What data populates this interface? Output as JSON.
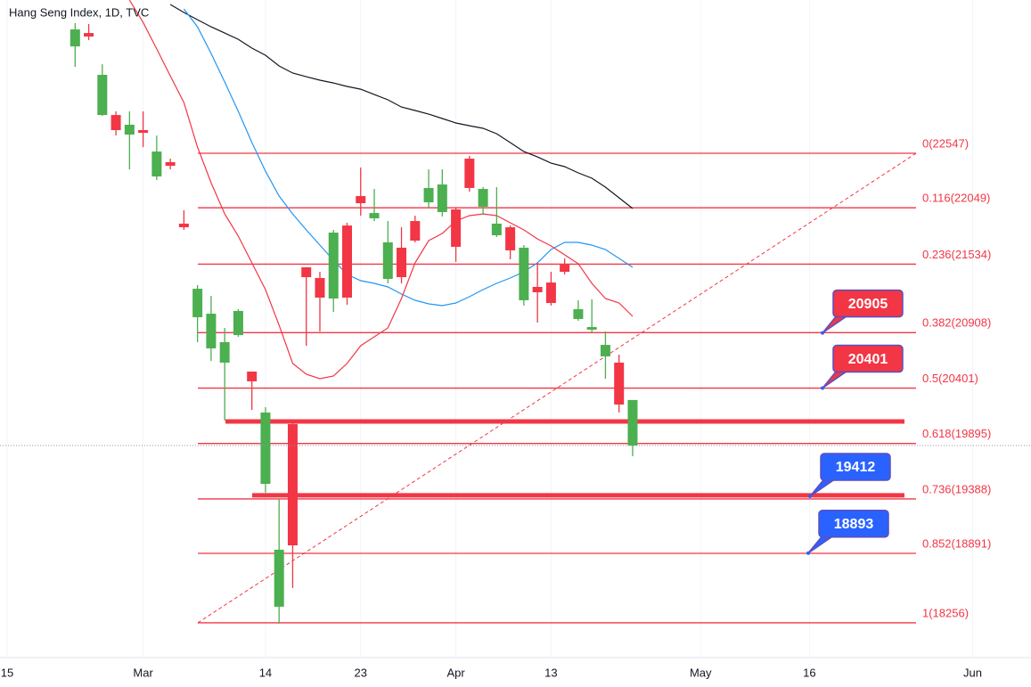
{
  "chart_data": {
    "type": "candlestick",
    "title": "Hang Seng Index, 1D, TVC",
    "categories": [
      "15",
      null,
      null,
      null,
      null,
      null,
      null,
      null,
      null,
      null,
      "Mar",
      null,
      null,
      null,
      null,
      null,
      null,
      null,
      null,
      "14",
      null,
      null,
      null,
      null,
      null,
      null,
      "23",
      null,
      null,
      null,
      null,
      null,
      null,
      "Apr",
      null,
      null,
      null,
      null,
      null,
      null,
      "13",
      null,
      null,
      null,
      null,
      null,
      null,
      null,
      null,
      null,
      null,
      "May",
      null,
      null,
      null,
      null,
      null,
      null,
      null,
      "16",
      null,
      null,
      null,
      null,
      null,
      null,
      null,
      null,
      null,
      null,
      null,
      "Jun",
      null,
      null,
      null,
      null
    ],
    "open": [
      null,
      null,
      null,
      null,
      null,
      23679,
      23614,
      23264,
      22759,
      22808,
      22734,
      22563,
      22433,
      21871,
      21309,
      21081,
      20821,
      21106,
      20463,
      20178,
      18924,
      18964,
      21415,
      21228,
      21822,
      21228,
      22091,
      22001,
      21733,
      21415,
      21749,
      22230,
      22262,
      21692,
      22230,
      22221,
      21904,
      21660,
      21684,
      21277,
      21179,
      21464,
      21122,
      20959,
      20796,
      20251,
      20292,
      null,
      null,
      null,
      null,
      null,
      null,
      null,
      null,
      null,
      null,
      null,
      null,
      null,
      null,
      null,
      null,
      null,
      null,
      null,
      null,
      null,
      null,
      null,
      null,
      null,
      null,
      null,
      null,
      null
    ],
    "high": [
      null,
      null,
      null,
      null,
      null,
      23736,
      23728,
      23361,
      22930,
      22930,
      22930,
      22710,
      22498,
      22026,
      21342,
      21244,
      20951,
      21122,
      20552,
      20227,
      19388,
      20112,
      21505,
      21464,
      21847,
      21912,
      22417,
      22221,
      21928,
      21871,
      21977,
      22400,
      22400,
      22050,
      22523,
      22238,
      22238,
      21887,
      21708,
      21546,
      21464,
      21586,
      21204,
      21212,
      20919,
      20707,
      20292,
      null,
      null,
      null,
      null,
      null,
      null,
      null,
      null,
      null,
      null,
      null,
      null,
      null,
      null,
      null,
      null,
      null,
      null,
      null,
      null,
      null,
      null,
      null,
      null,
      null,
      null,
      null,
      null,
      null
    ],
    "low": [
      null,
      null,
      null,
      null,
      null,
      23337,
      23581,
      22889,
      22710,
      22400,
      22604,
      22303,
      22400,
      21847,
      20821,
      20650,
      20104,
      20870,
      20202,
      19445,
      18248,
      18574,
      20788,
      20919,
      21098,
      21163,
      21977,
      21928,
      21358,
      21358,
      21733,
      22042,
      21969,
      21554,
      22197,
      21985,
      21782,
      21578,
      21155,
      21000,
      21155,
      21440,
      21016,
      20910,
      20487,
      20178,
      19779,
      null,
      null,
      null,
      null,
      null,
      null,
      null,
      null,
      null,
      null,
      null,
      null,
      null,
      null,
      null,
      null,
      null,
      null,
      null,
      null,
      null,
      null,
      null,
      null,
      null,
      null,
      null,
      null,
      null
    ],
    "close": [
      null,
      null,
      null,
      null,
      null,
      23524,
      23646,
      22897,
      22897,
      22718,
      22759,
      22335,
      22466,
      21904,
      21049,
      20764,
      20634,
      20886,
      20552,
      19526,
      18403,
      20072,
      21505,
      21407,
      21220,
      21887,
      22156,
      21953,
      21399,
      21684,
      21928,
      22099,
      22010,
      22034,
      22498,
      22058,
      21798,
      21871,
      21204,
      21326,
      21366,
      21529,
      21033,
      20935,
      20691,
      20634,
      19876,
      null,
      null,
      null,
      null,
      null,
      null,
      null,
      null,
      null,
      null,
      null,
      null,
      null,
      null,
      null,
      null,
      null,
      null,
      null,
      null,
      null,
      null,
      null,
      null,
      null,
      null,
      null,
      null,
      null
    ],
    "up_color": "#f23645",
    "down_color": "#4caf50",
    "lines": [
      {
        "color": "#131722",
        "values": [
          null,
          null,
          null,
          null,
          null,
          null,
          null,
          null,
          null,
          null,
          null,
          null,
          23907,
          23834,
          23768,
          23703,
          23646,
          23589,
          23508,
          23443,
          23345,
          23280,
          23247,
          23215,
          23190,
          23158,
          23133,
          23084,
          23036,
          22970,
          22938,
          22905,
          22865,
          22824,
          22799,
          22775,
          22726,
          22645,
          22563,
          22514,
          22457,
          22425,
          22368,
          22319,
          22238,
          22140,
          22042,
          null,
          null,
          null,
          null,
          null,
          null,
          null,
          null,
          null,
          null,
          null,
          null,
          null,
          null,
          null,
          null,
          null,
          null,
          null,
          null,
          null,
          null,
          null,
          null,
          null,
          null,
          null,
          null,
          null
        ]
      },
      {
        "color": "#2196f3",
        "values": [
          null,
          null,
          null,
          null,
          null,
          null,
          null,
          null,
          null,
          null,
          null,
          null,
          null,
          23866,
          23703,
          23459,
          23198,
          22930,
          22645,
          22384,
          22156,
          21993,
          21847,
          21708,
          21570,
          21440,
          21383,
          21358,
          21326,
          21261,
          21204,
          21171,
          21155,
          21179,
          21236,
          21301,
          21358,
          21407,
          21464,
          21546,
          21668,
          21733,
          21733,
          21708,
          21668,
          21586,
          21505,
          null,
          null,
          null,
          null,
          null,
          null,
          null,
          null,
          null,
          null,
          null,
          null,
          null,
          null,
          null,
          null,
          null,
          null,
          null,
          null,
          null,
          null,
          null,
          null,
          null,
          null,
          null,
          null,
          null
        ]
      },
      {
        "color": "#f23645",
        "values": [
          null,
          null,
          null,
          null,
          null,
          null,
          null,
          null,
          null,
          23947,
          23744,
          23500,
          23255,
          23011,
          22604,
          22278,
          21993,
          21790,
          21546,
          21301,
          20976,
          20626,
          20528,
          20487,
          20511,
          20626,
          20788,
          20870,
          20951,
          21220,
          21546,
          21749,
          21814,
          21928,
          21977,
          21993,
          21977,
          21912,
          21847,
          21765,
          21700,
          21619,
          21538,
          21358,
          21220,
          21179,
          21057,
          null,
          null,
          null,
          null,
          null,
          null,
          null,
          null,
          null,
          null,
          null,
          null,
          null,
          null,
          null,
          null,
          null,
          null,
          null,
          null,
          null,
          null,
          null,
          null,
          null,
          null,
          null,
          null,
          null
        ]
      }
    ],
    "ylim": [
      17938,
      23948
    ],
    "grid": true,
    "fib_color": "#f23645",
    "fib_levels": [
      {
        "value": 22547,
        "label": "0(22547)"
      },
      {
        "value": 22049,
        "label": "0.116(22049)"
      },
      {
        "value": 21534,
        "label": "0.236(21534)"
      },
      {
        "value": 20908,
        "label": "0.382(20908)"
      },
      {
        "value": 20401,
        "label": "0.5(20401)"
      },
      {
        "value": 19895,
        "label": "0.618(19895)"
      },
      {
        "value": 19388,
        "label": "0.736(19388)"
      },
      {
        "value": 18891,
        "label": "0.852(18891)"
      },
      {
        "value": 18256,
        "label": "1(18256)"
      }
    ],
    "hlines": [
      20096,
      19421
    ],
    "callouts": [
      {
        "value": 20905,
        "color": "#f23645"
      },
      {
        "value": 20401,
        "color": "#f23645"
      },
      {
        "value": 19412,
        "color": "#2962ff"
      },
      {
        "value": 18893,
        "color": "#2962ff"
      }
    ]
  }
}
